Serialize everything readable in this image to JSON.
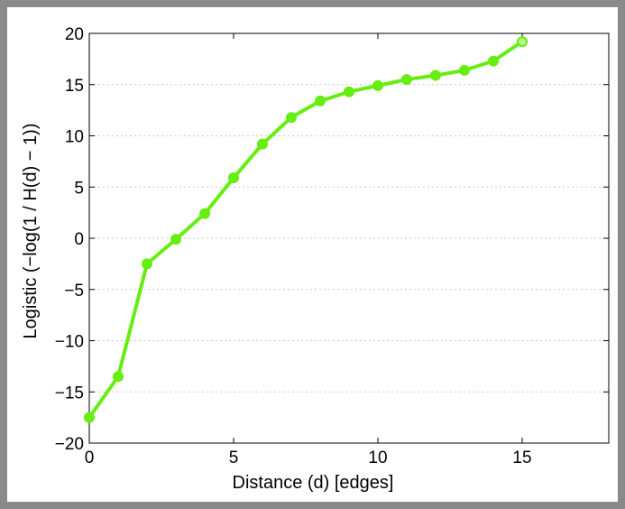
{
  "chart_data": {
    "type": "line",
    "title": "",
    "xlabel": "Distance (d) [edges]",
    "ylabel": "Logistic (−log(1 / H(d) − 1))",
    "xlim": [
      0,
      18
    ],
    "ylim": [
      -20,
      20
    ],
    "xticks": [
      0,
      5,
      10,
      15
    ],
    "yticks": [
      -20,
      -15,
      -10,
      -5,
      0,
      5,
      10,
      15,
      20
    ],
    "grid": "horizontal dotted",
    "series": [
      {
        "color": "#66ee11",
        "x": [
          0,
          1,
          2,
          3,
          4,
          5,
          6,
          7,
          8,
          9,
          10,
          11,
          12,
          13,
          14,
          15
        ],
        "y": [
          -17.5,
          -13.5,
          -2.5,
          -0.1,
          2.4,
          5.9,
          9.2,
          11.8,
          13.4,
          14.3,
          14.9,
          15.5,
          15.9,
          16.4,
          17.3,
          19.2
        ]
      }
    ]
  }
}
